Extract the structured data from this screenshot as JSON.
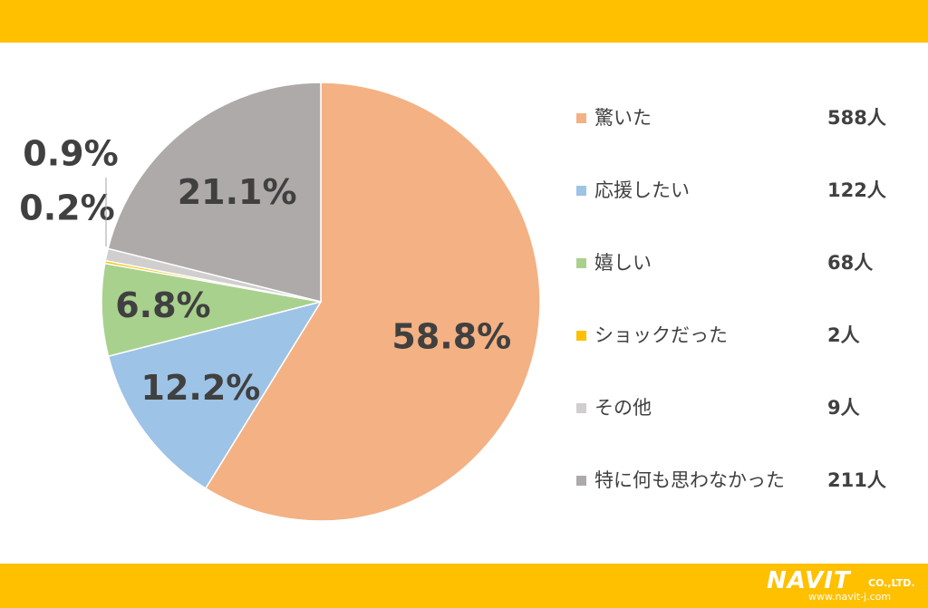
{
  "chart_data": {
    "type": "pie",
    "slices": [
      {
        "label": "驚いた",
        "value": 58.8,
        "count": "588人",
        "color": "#f4b183",
        "pct_label": "58.8%"
      },
      {
        "label": "応援したい",
        "value": 12.2,
        "count": "122人",
        "color": "#9dc3e6",
        "pct_label": "12.2%"
      },
      {
        "label": "嬉しい",
        "value": 6.8,
        "count": "68人",
        "color": "#a9d18e",
        "pct_label": "6.8%"
      },
      {
        "label": "ショックだった",
        "value": 0.2,
        "count": "2人",
        "color": "#ffc000",
        "pct_label": "0.2%"
      },
      {
        "label": "その他",
        "value": 0.9,
        "count": "9人",
        "color": "#d0cece",
        "pct_label": "0.9%"
      },
      {
        "label": "特に何も思わなかった",
        "value": 21.1,
        "count": "211人",
        "color": "#aeaaaa",
        "pct_label": "21.1%"
      }
    ],
    "legend_position": "right"
  },
  "branding": {
    "band_color": "#ffc000",
    "logo_main": "NAVIT",
    "logo_suffix": "CO.,LTD.",
    "logo_url": "www.navit-j.com"
  }
}
